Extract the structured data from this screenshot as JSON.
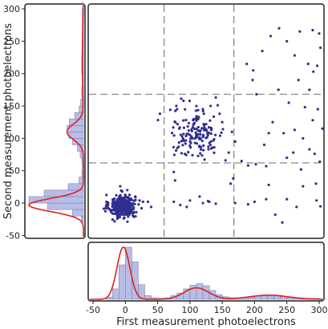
{
  "chart_data": [
    {
      "type": "scatter",
      "xlabel": "",
      "ylabel": "",
      "xlim": [
        -55,
        305
      ],
      "ylim": [
        -52,
        305
      ],
      "point_color": "#2f2f8f",
      "thresholds": {
        "x": [
          60,
          168
        ],
        "y": [
          62,
          168
        ],
        "line_color": "#888888",
        "style": "dashed"
      },
      "series": [
        {
          "clusters": [
            {
              "center": [
                -5,
                -5
              ],
              "spread": [
                10,
                9
              ],
              "count": 330
            },
            {
              "center": [
                110,
                108
              ],
              "spread": [
                22,
                19
              ],
              "count": 150
            }
          ],
          "points": [
            [
              25,
              -8
            ],
            [
              10,
              -2
            ],
            [
              22,
              4
            ],
            [
              -14,
              12
            ],
            [
              3,
              20
            ],
            [
              -8,
              26
            ],
            [
              35,
              2
            ],
            [
              40,
              -6
            ],
            [
              75,
              2
            ],
            [
              100,
              4
            ],
            [
              120,
              0
            ],
            [
              130,
              2
            ],
            [
              95,
              -6
            ],
            [
              85,
              -3
            ],
            [
              140,
              -1
            ],
            [
              128,
              3
            ],
            [
              75,
              48
            ],
            [
              77,
              35
            ],
            [
              115,
              10
            ],
            [
              80,
              145
            ],
            [
              90,
              158
            ],
            [
              120,
              145
            ],
            [
              132,
              150
            ],
            [
              140,
              163
            ],
            [
              143,
              151
            ],
            [
              146,
              138
            ],
            [
              150,
              125
            ],
            [
              165,
              110
            ],
            [
              170,
              95
            ],
            [
              160,
              78
            ],
            [
              155,
              66
            ],
            [
              163,
              30
            ],
            [
              167,
              38
            ],
            [
              170,
              0
            ],
            [
              180,
              65
            ],
            [
              190,
              58
            ],
            [
              202,
              60
            ],
            [
              218,
              57
            ],
            [
              250,
              70
            ],
            [
              260,
              78
            ],
            [
              272,
              52
            ],
            [
              285,
              83
            ],
            [
              293,
              76
            ],
            [
              301,
              64
            ],
            [
              215,
              90
            ],
            [
              222,
              108
            ],
            [
              228,
              125
            ],
            [
              245,
              108
            ],
            [
              262,
              113
            ],
            [
              275,
              100
            ],
            [
              290,
              128
            ],
            [
              298,
              145
            ],
            [
              305,
              115
            ],
            [
              188,
              215
            ],
            [
              198,
              205
            ],
            [
              212,
              235
            ],
            [
              225,
              258
            ],
            [
              238,
              270
            ],
            [
              250,
              250
            ],
            [
              262,
              228
            ],
            [
              270,
              265
            ],
            [
              283,
              215
            ],
            [
              290,
              267
            ],
            [
              300,
              262
            ],
            [
              302,
              240
            ],
            [
              197,
              190
            ],
            [
              237,
              175
            ],
            [
              268,
              190
            ],
            [
              285,
              175
            ],
            [
              291,
              203
            ],
            [
              297,
              212
            ],
            [
              203,
              168
            ],
            [
              253,
              155
            ],
            [
              278,
              148
            ],
            [
              190,
              -2
            ],
            [
              200,
              2
            ],
            [
              218,
              6
            ],
            [
              232,
              -18
            ],
            [
              250,
              6
            ],
            [
              265,
              -6
            ],
            [
              296,
              4
            ],
            [
              222,
              28
            ],
            [
              243,
              -30
            ],
            [
              275,
              26
            ],
            [
              295,
              30
            ],
            [
              302,
              -5
            ]
          ]
        }
      ]
    },
    {
      "type": "histogram",
      "orientation": "vertical",
      "xlabel": "First measurement photoelectrons",
      "xlim": [
        -55,
        305
      ],
      "xticks": [
        "-50",
        "0",
        "50",
        "100",
        "150",
        "200",
        "250",
        "300"
      ],
      "bar_fill": "#b8bde6",
      "bar_edge": "#6f74b0",
      "fit_color": "#e02020",
      "bin_width": 10,
      "bins_start": -30,
      "counts": [
        0.04,
        0.2,
        0.66,
        1.0,
        0.72,
        0.28,
        0.07,
        0.03,
        0.02,
        0.03,
        0.07,
        0.12,
        0.2,
        0.27,
        0.3,
        0.26,
        0.17,
        0.09,
        0.05,
        0.03,
        0.03,
        0.03,
        0.04,
        0.06,
        0.07,
        0.08,
        0.07,
        0.05,
        0.04,
        0.03,
        0.02,
        0.02,
        0.02,
        0.01
      ],
      "fit": {
        "peaks": [
          {
            "mean": -3,
            "sigma": 10,
            "height": 1.0
          },
          {
            "mean": 110,
            "sigma": 19,
            "height": 0.22
          },
          {
            "mean": 222,
            "sigma": 30,
            "height": 0.08
          }
        ]
      }
    },
    {
      "type": "histogram",
      "orientation": "horizontal",
      "ylabel": "Second measurement photoelectrons",
      "ylim": [
        -52,
        305
      ],
      "yticks": [
        "-50",
        "0",
        "50",
        "100",
        "150",
        "200",
        "250",
        "300"
      ],
      "bar_fill": "#b8bde6",
      "bar_edge": "#6f74b0",
      "fit_color": "#e02020",
      "bin_width": 10,
      "bins_start": -30,
      "counts": [
        0.04,
        0.2,
        0.66,
        1.0,
        0.72,
        0.28,
        0.08,
        0.03,
        0.02,
        0.03,
        0.06,
        0.11,
        0.2,
        0.27,
        0.3,
        0.26,
        0.16,
        0.08,
        0.05,
        0.03,
        0.03,
        0.02,
        0.02,
        0.03,
        0.03,
        0.03,
        0.02,
        0.02,
        0.02,
        0.02,
        0.02,
        0.02,
        0.02,
        0.01
      ],
      "fit": {
        "peaks": [
          {
            "mean": -3,
            "sigma": 10,
            "height": 1.0
          },
          {
            "mean": 110,
            "sigma": 12,
            "height": 0.3
          },
          {
            "mean": 222,
            "sigma": 45,
            "height": 0.02
          }
        ]
      }
    }
  ]
}
